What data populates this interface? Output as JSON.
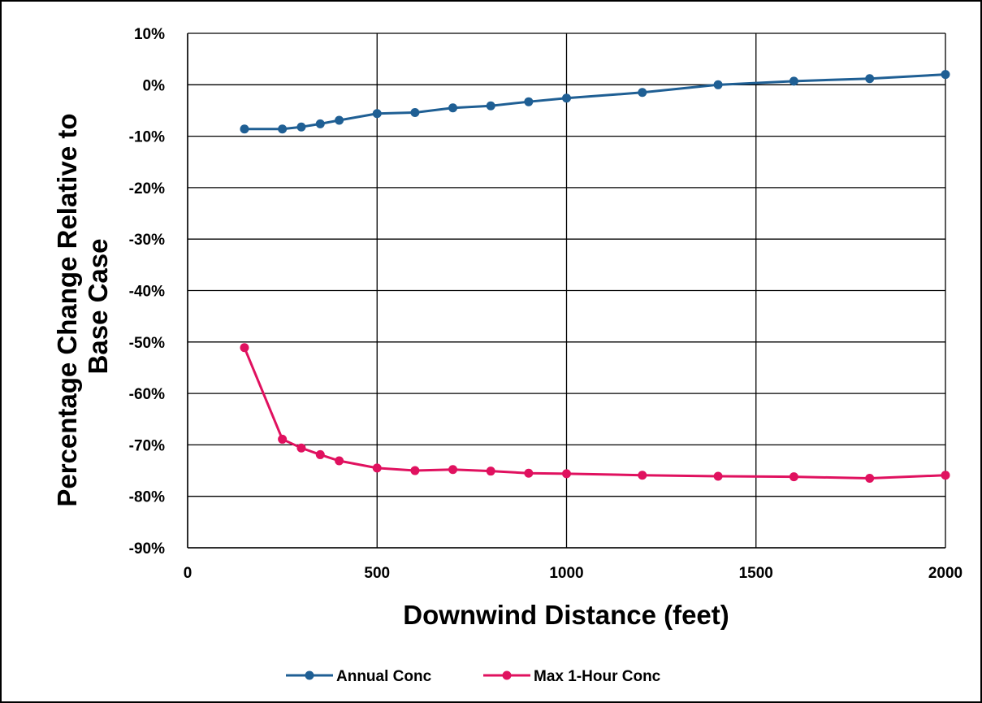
{
  "chart_data": {
    "type": "line",
    "title": "",
    "xlabel": "Downwind Distance (feet)",
    "ylabel_lines": [
      "Percentage Change Relative to",
      "Base Case"
    ],
    "xlim": [
      0,
      2000
    ],
    "ylim": [
      -0.9,
      0.1
    ],
    "x_ticks": [
      0,
      500,
      1000,
      1500,
      2000
    ],
    "x_tick_labels": [
      "0",
      "500",
      "1000",
      "1500",
      "2000"
    ],
    "y_ticks": [
      0.1,
      0,
      -0.1,
      -0.2,
      -0.3,
      -0.4,
      -0.5,
      -0.6,
      -0.7,
      -0.8,
      -0.9
    ],
    "y_tick_labels": [
      "10%",
      "0%",
      "-10%",
      "-20%",
      "-30%",
      "-40%",
      "-50%",
      "-60%",
      "-70%",
      "-80%",
      "-90%"
    ],
    "grid": true,
    "legend_position": "bottom",
    "series": [
      {
        "name": "Annual Conc",
        "color": "#1F5F94",
        "x": [
          150,
          250,
          300,
          350,
          400,
          500,
          600,
          700,
          800,
          900,
          1000,
          1200,
          1400,
          1600,
          1800,
          2000
        ],
        "y": [
          -0.086,
          -0.086,
          -0.082,
          -0.076,
          -0.069,
          -0.056,
          -0.054,
          -0.045,
          -0.041,
          -0.033,
          -0.026,
          -0.015,
          0.0,
          0.007,
          0.012,
          0.02
        ]
      },
      {
        "name": "Max 1-Hour Conc",
        "color": "#E0115F",
        "x": [
          150,
          250,
          300,
          350,
          400,
          500,
          600,
          700,
          800,
          900,
          1000,
          1200,
          1400,
          1600,
          1800,
          2000
        ],
        "y": [
          -0.511,
          -0.689,
          -0.706,
          -0.719,
          -0.731,
          -0.745,
          -0.75,
          -0.748,
          -0.751,
          -0.755,
          -0.756,
          -0.759,
          -0.761,
          -0.762,
          -0.765,
          -0.759
        ]
      }
    ]
  }
}
